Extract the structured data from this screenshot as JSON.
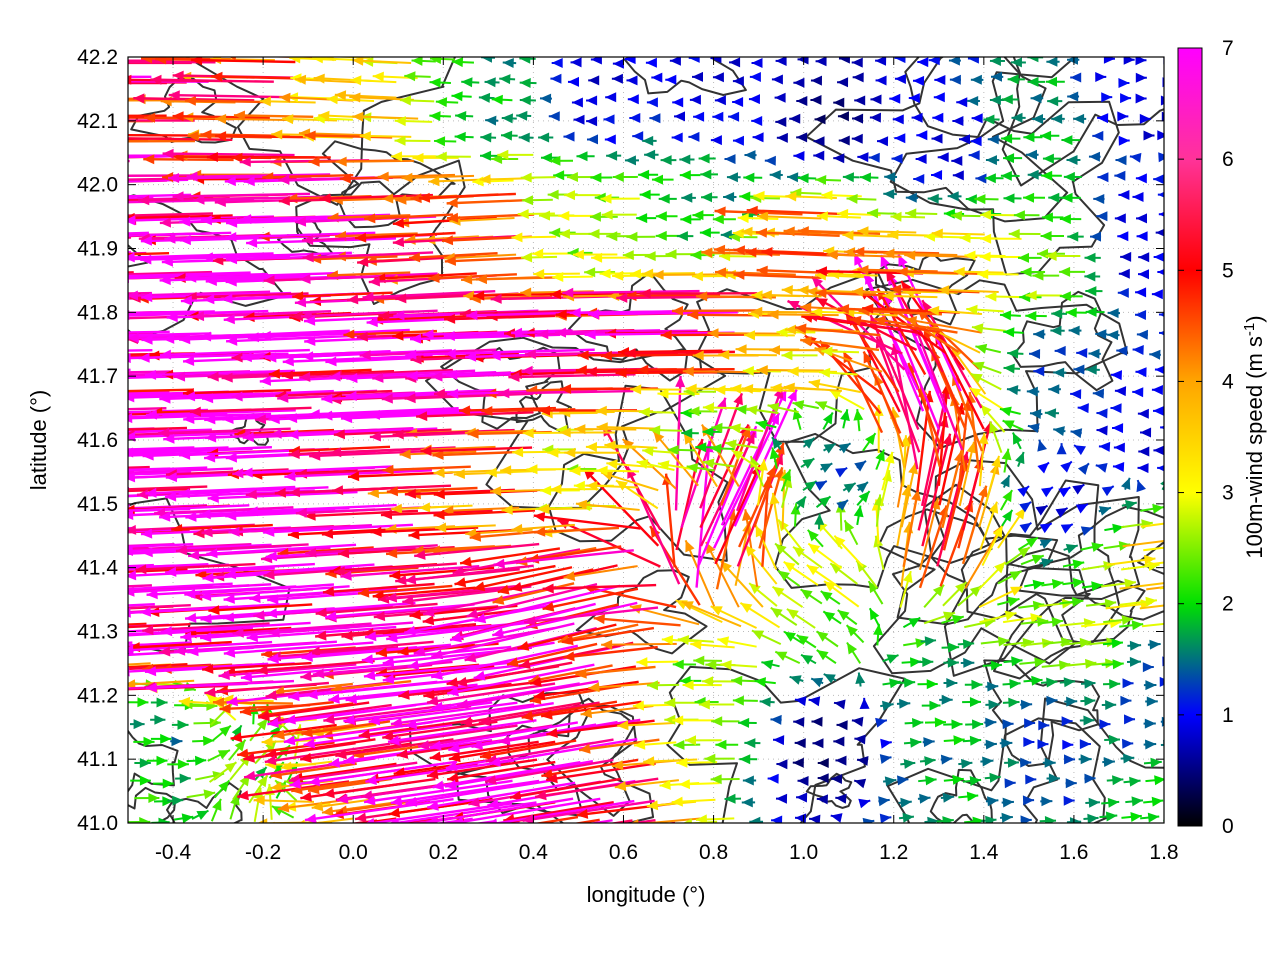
{
  "chart_data": {
    "type": "vector-field",
    "xlabel": "longitude (°)",
    "ylabel": "latitude (°)",
    "xlim": [
      -0.5,
      1.8
    ],
    "ylim": [
      41.0,
      42.2
    ],
    "x_ticks": [
      "-0.4",
      "-0.2",
      "0.0",
      "0.2",
      "0.4",
      "0.6",
      "0.8",
      "1.0",
      "1.2",
      "1.4",
      "1.6",
      "1.8"
    ],
    "x_tick_values": [
      -0.4,
      -0.2,
      0.0,
      0.2,
      0.4,
      0.6,
      0.8,
      1.0,
      1.2,
      1.4,
      1.6,
      1.8
    ],
    "y_ticks": [
      "41.0",
      "41.1",
      "41.2",
      "41.3",
      "41.4",
      "41.5",
      "41.6",
      "41.7",
      "41.8",
      "41.9",
      "42.0",
      "42.1",
      "42.2"
    ],
    "y_tick_values": [
      41.0,
      41.1,
      41.2,
      41.3,
      41.4,
      41.5,
      41.6,
      41.7,
      41.8,
      41.9,
      42.0,
      42.1,
      42.2
    ],
    "grid": "dotted",
    "colorbar": {
      "label": "100m-wind speed (m s-1)",
      "range": [
        0,
        7
      ],
      "ticks": [
        "0",
        "1",
        "2",
        "3",
        "4",
        "5",
        "6",
        "7"
      ],
      "tick_values": [
        0,
        1,
        2,
        3,
        4,
        5,
        6,
        7
      ],
      "colors": [
        "#000000",
        "#0000ff",
        "#00e000",
        "#ffff00",
        "#ffa500",
        "#ff0000",
        "#ff00ff"
      ]
    },
    "wind_vectors": [
      {
        "lon": -0.45,
        "lat": 42.18,
        "u": -6.0,
        "v": 0.0,
        "speed": 6.0
      },
      {
        "lon": -0.45,
        "lat": 41.95,
        "u": -7.0,
        "v": -0.2,
        "speed": 7.0
      },
      {
        "lon": -0.45,
        "lat": 41.75,
        "u": -7.0,
        "v": -0.1,
        "speed": 7.0
      },
      {
        "lon": -0.45,
        "lat": 41.55,
        "u": -7.0,
        "v": -0.2,
        "speed": 7.0
      },
      {
        "lon": -0.45,
        "lat": 41.35,
        "u": -7.0,
        "v": -0.3,
        "speed": 7.0
      },
      {
        "lon": -0.45,
        "lat": 41.15,
        "u": 2.0,
        "v": 0.0,
        "speed": 2.0
      },
      {
        "lon": -0.2,
        "lat": 42.1,
        "u": -5.5,
        "v": 0.1,
        "speed": 5.5
      },
      {
        "lon": -0.2,
        "lat": 41.9,
        "u": -7.0,
        "v": -0.2,
        "speed": 7.0
      },
      {
        "lon": -0.2,
        "lat": 41.7,
        "u": -7.0,
        "v": -0.2,
        "speed": 7.0
      },
      {
        "lon": -0.2,
        "lat": 41.5,
        "u": -7.0,
        "v": -0.3,
        "speed": 7.0
      },
      {
        "lon": -0.2,
        "lat": 41.3,
        "u": -7.0,
        "v": -0.4,
        "speed": 7.0
      },
      {
        "lon": -0.2,
        "lat": 41.1,
        "u": 0.5,
        "v": 0.5,
        "speed": 2.5
      },
      {
        "lon": 0.05,
        "lat": 42.15,
        "u": -4.0,
        "v": 0.2,
        "speed": 4.0
      },
      {
        "lon": 0.05,
        "lat": 41.95,
        "u": -6.5,
        "v": -0.2,
        "speed": 6.5
      },
      {
        "lon": 0.05,
        "lat": 41.75,
        "u": -7.0,
        "v": -0.3,
        "speed": 7.0
      },
      {
        "lon": 0.05,
        "lat": 41.55,
        "u": -7.0,
        "v": -0.3,
        "speed": 7.0
      },
      {
        "lon": 0.05,
        "lat": 41.35,
        "u": -7.0,
        "v": -0.5,
        "speed": 7.0
      },
      {
        "lon": 0.05,
        "lat": 41.12,
        "u": -5.5,
        "v": -0.8,
        "speed": 5.5
      },
      {
        "lon": 0.3,
        "lat": 42.12,
        "u": -2.0,
        "v": 0.1,
        "speed": 2.0
      },
      {
        "lon": 0.3,
        "lat": 41.92,
        "u": -5.5,
        "v": -0.3,
        "speed": 5.5
      },
      {
        "lon": 0.3,
        "lat": 41.72,
        "u": -7.0,
        "v": -0.3,
        "speed": 7.0
      },
      {
        "lon": 0.3,
        "lat": 41.52,
        "u": -5.0,
        "v": -0.2,
        "speed": 5.0
      },
      {
        "lon": 0.3,
        "lat": 41.3,
        "u": -7.0,
        "v": -0.6,
        "speed": 7.0
      },
      {
        "lon": 0.3,
        "lat": 41.1,
        "u": -7.0,
        "v": -1.0,
        "speed": 7.0
      },
      {
        "lon": 0.55,
        "lat": 42.15,
        "u": -1.0,
        "v": 0.0,
        "speed": 1.0
      },
      {
        "lon": 0.55,
        "lat": 41.92,
        "u": -3.0,
        "v": 0.0,
        "speed": 3.0
      },
      {
        "lon": 0.55,
        "lat": 41.75,
        "u": -7.0,
        "v": -0.2,
        "speed": 7.0
      },
      {
        "lon": 0.55,
        "lat": 41.55,
        "u": -3.5,
        "v": 0.0,
        "speed": 3.5
      },
      {
        "lon": 0.55,
        "lat": 41.35,
        "u": -6.0,
        "v": -1.5,
        "speed": 6.5
      },
      {
        "lon": 0.55,
        "lat": 41.12,
        "u": -7.0,
        "v": -1.2,
        "speed": 7.0
      },
      {
        "lon": 0.8,
        "lat": 42.15,
        "u": -1.0,
        "v": 0.0,
        "speed": 1.0
      },
      {
        "lon": 0.8,
        "lat": 41.95,
        "u": -2.0,
        "v": 0.0,
        "speed": 2.0
      },
      {
        "lon": 0.8,
        "lat": 41.78,
        "u": -6.5,
        "v": -0.1,
        "speed": 6.5
      },
      {
        "lon": 0.8,
        "lat": 41.6,
        "u": -2.5,
        "v": 0.0,
        "speed": 2.5
      },
      {
        "lon": 0.8,
        "lat": 41.45,
        "u": 1.5,
        "v": 3.0,
        "speed": 6.5
      },
      {
        "lon": 0.8,
        "lat": 41.2,
        "u": -3.0,
        "v": 0.0,
        "speed": 3.0
      },
      {
        "lon": 1.05,
        "lat": 42.1,
        "u": -0.5,
        "v": 0.0,
        "speed": 0.5
      },
      {
        "lon": 1.05,
        "lat": 41.9,
        "u": -5.0,
        "v": 0.2,
        "speed": 5.0
      },
      {
        "lon": 1.05,
        "lat": 41.75,
        "u": -4.0,
        "v": 0.0,
        "speed": 4.0
      },
      {
        "lon": 1.05,
        "lat": 41.55,
        "u": 1.0,
        "v": 0.5,
        "speed": 1.5
      },
      {
        "lon": 1.05,
        "lat": 41.35,
        "u": -1.5,
        "v": 1.0,
        "speed": 3.0
      },
      {
        "lon": 1.05,
        "lat": 41.12,
        "u": -0.5,
        "v": 0.0,
        "speed": 0.5
      },
      {
        "lon": 1.3,
        "lat": 42.05,
        "u": -1.0,
        "v": 0.0,
        "speed": 1.0
      },
      {
        "lon": 1.3,
        "lat": 41.85,
        "u": -5.0,
        "v": 0.1,
        "speed": 5.0
      },
      {
        "lon": 1.3,
        "lat": 41.65,
        "u": -1.0,
        "v": 2.5,
        "speed": 7.0
      },
      {
        "lon": 1.3,
        "lat": 41.45,
        "u": 0.5,
        "v": 2.0,
        "speed": 5.5
      },
      {
        "lon": 1.3,
        "lat": 41.22,
        "u": 2.0,
        "v": 0.0,
        "speed": 2.0
      },
      {
        "lon": 1.3,
        "lat": 41.05,
        "u": 2.0,
        "v": 0.2,
        "speed": 2.0
      },
      {
        "lon": 1.55,
        "lat": 42.1,
        "u": -2.0,
        "v": 0.0,
        "speed": 2.0
      },
      {
        "lon": 1.55,
        "lat": 41.88,
        "u": -3.0,
        "v": 0.0,
        "speed": 3.0
      },
      {
        "lon": 1.55,
        "lat": 41.7,
        "u": -1.5,
        "v": 0.0,
        "speed": 1.5
      },
      {
        "lon": 1.55,
        "lat": 41.5,
        "u": 0.5,
        "v": 0.3,
        "speed": 1.0
      },
      {
        "lon": 1.55,
        "lat": 41.3,
        "u": 3.0,
        "v": 0.3,
        "speed": 3.0
      },
      {
        "lon": 1.55,
        "lat": 41.12,
        "u": 2.0,
        "v": 0.0,
        "speed": 1.5
      },
      {
        "lon": 1.75,
        "lat": 42.15,
        "u": 1.0,
        "v": 0.0,
        "speed": 1.0
      },
      {
        "lon": 1.75,
        "lat": 41.9,
        "u": -1.0,
        "v": 0.0,
        "speed": 1.0
      },
      {
        "lon": 1.75,
        "lat": 41.6,
        "u": -1.0,
        "v": 0.0,
        "speed": 1.0
      },
      {
        "lon": 1.75,
        "lat": 41.4,
        "u": 4.0,
        "v": 0.5,
        "speed": 4.0
      },
      {
        "lon": 1.75,
        "lat": 41.2,
        "u": 1.5,
        "v": 0.0,
        "speed": 1.5
      },
      {
        "lon": 1.75,
        "lat": 41.03,
        "u": 2.0,
        "v": 0.2,
        "speed": 2.0
      }
    ]
  }
}
